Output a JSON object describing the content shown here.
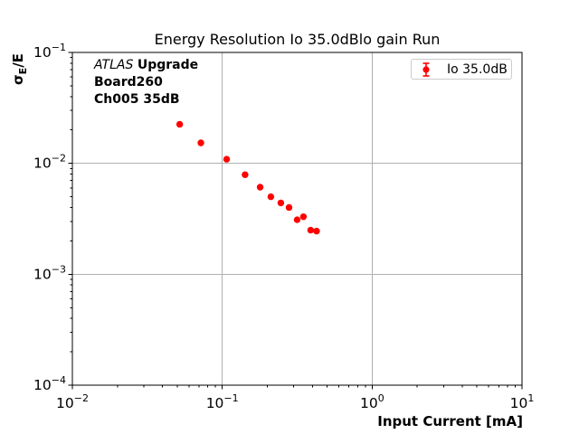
{
  "annotation": {
    "experiment": "ATLAS",
    "upgrade": "Upgrade",
    "board": "Board260",
    "channel": "Ch005 35dB"
  },
  "ylabel_parts": {
    "sigma": "σ",
    "sub": "E",
    "rest": "/E"
  },
  "colors": {
    "marker": "#ff0000",
    "grid": "#b0b0b0",
    "spine": "#000000",
    "legend_border": "#cccccc",
    "text": "#000000"
  },
  "chart_data": {
    "type": "scatter",
    "title": "Energy Resolution Io 35.0dBlo gain Run",
    "xlabel": "Input Current [mA]",
    "ylabel": "σE/E",
    "xscale": "log",
    "yscale": "log",
    "xlim": [
      0.01,
      10
    ],
    "ylim": [
      0.0001,
      0.1
    ],
    "grid": true,
    "legend_position": "upper right",
    "x_tick_exponents": [
      -2,
      -1,
      0,
      1
    ],
    "y_tick_exponents": [
      -1,
      -2,
      -3,
      -4
    ],
    "series": [
      {
        "name": "Io 35.0dB",
        "color": "#ff0000",
        "marker": "circle",
        "errorbars": true,
        "x": [
          0.052,
          0.072,
          0.107,
          0.142,
          0.179,
          0.211,
          0.246,
          0.279,
          0.316,
          0.348,
          0.389,
          0.426
        ],
        "y": [
          0.0225,
          0.0153,
          0.0109,
          0.0079,
          0.0061,
          0.005,
          0.0044,
          0.004,
          0.0031,
          0.0033,
          0.0025,
          0.00245
        ]
      }
    ]
  }
}
